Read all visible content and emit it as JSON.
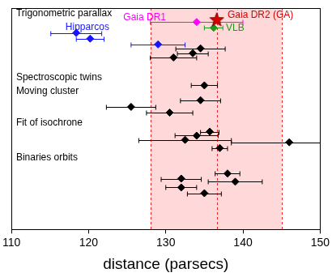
{
  "chart_data": {
    "type": "scatter",
    "xlabel": "distance (parsecs)",
    "xlim": [
      110,
      150
    ],
    "xticks": [
      110,
      120,
      130,
      140,
      150
    ],
    "ylim": [
      0,
      100
    ],
    "tick_labels": "x",
    "grid": false,
    "shaded_range": {
      "x": [
        128,
        145
      ],
      "color": "#ffd9d9"
    },
    "reference_lines": {
      "x": [
        128,
        136.6,
        145
      ],
      "color": "#e02a2a",
      "line_style": "dashed"
    },
    "series": [
      {
        "color": "#d40000",
        "marker": "star",
        "values": [
          {
            "x": 136.6,
            "y": 94.8
          }
        ]
      },
      {
        "color": "#ff00ff",
        "marker": "diamond",
        "values": [
          {
            "x": 134,
            "y": 93.7,
            "xerr": 6
          }
        ]
      },
      {
        "color": "#1a9a1a",
        "marker": "diamond",
        "values": [
          {
            "x": 136.2,
            "y": 91.1,
            "xerr": 1.2
          }
        ]
      },
      {
        "color": "#1515ff",
        "marker": "diamond",
        "values": [
          {
            "x": 118.4,
            "y": 88.8,
            "xerr": 3.3
          },
          {
            "x": 120.2,
            "y": 86.2,
            "xerr": 1.8
          },
          {
            "x": 129,
            "y": 83.6,
            "xerr": 3.5
          }
        ]
      },
      {
        "color": "#000000",
        "marker": "diamond",
        "values": [
          {
            "x": 134.5,
            "y": 81.8,
            "xerr": 3.2
          },
          {
            "x": 133.5,
            "y": 79.6,
            "xerr": 2
          },
          {
            "x": 131,
            "y": 77.7,
            "xerr": 3
          },
          {
            "x": 135,
            "y": 65.1,
            "xerr": 1.7
          },
          {
            "x": 134.5,
            "y": 58.4,
            "xerr": 2.6
          },
          {
            "x": 125.5,
            "y": 55.4,
            "xerr": 3.2
          },
          {
            "x": 130.5,
            "y": 52.8,
            "xerr": 3
          },
          {
            "x": 135.7,
            "y": 44.2,
            "xerr": 1.2
          },
          {
            "x": 134,
            "y": 42.4,
            "xerr": 2.8
          },
          {
            "x": 132.5,
            "y": 40.5,
            "xerr": 6
          },
          {
            "x": 146,
            "y": 39.4,
            "xerr": 7.5
          },
          {
            "x": 137,
            "y": 36.8,
            "xerr": 1
          },
          {
            "x": 138,
            "y": 25.3,
            "xerr": 1.6
          },
          {
            "x": 132,
            "y": 23,
            "xerr": 2.6
          },
          {
            "x": 139,
            "y": 21.6,
            "xerr": 3.5
          },
          {
            "x": 132,
            "y": 19,
            "xerr": 2
          },
          {
            "x": 135,
            "y": 16.4,
            "xerr": 2.2
          }
        ]
      }
    ],
    "annotations": [
      {
        "text": "Trigonometric parallax",
        "x": 110.6,
        "y": 97.5,
        "color": "#000000"
      },
      {
        "text": "Hipparcos",
        "x": 117,
        "y": 91.2,
        "color": "#1515ff"
      },
      {
        "text": "Gaia DR1",
        "x": 124.5,
        "y": 95.6,
        "color": "#ff00ff"
      },
      {
        "text": "Gaia DR2 (GA)",
        "x": 138,
        "y": 97,
        "color": "#d40000"
      },
      {
        "text": "VLB",
        "x": 137.8,
        "y": 91,
        "color": "#1a9a1a"
      },
      {
        "text": "Spectroscopic twins",
        "x": 110.6,
        "y": 68.5,
        "color": "#000000"
      },
      {
        "text": "Moving cluster",
        "x": 110.6,
        "y": 62.5,
        "color": "#000000"
      },
      {
        "text": "Fit of isochrone",
        "x": 110.6,
        "y": 48,
        "color": "#000000"
      },
      {
        "text": "Binaries orbits",
        "x": 110.6,
        "y": 32.5,
        "color": "#000000"
      }
    ]
  }
}
